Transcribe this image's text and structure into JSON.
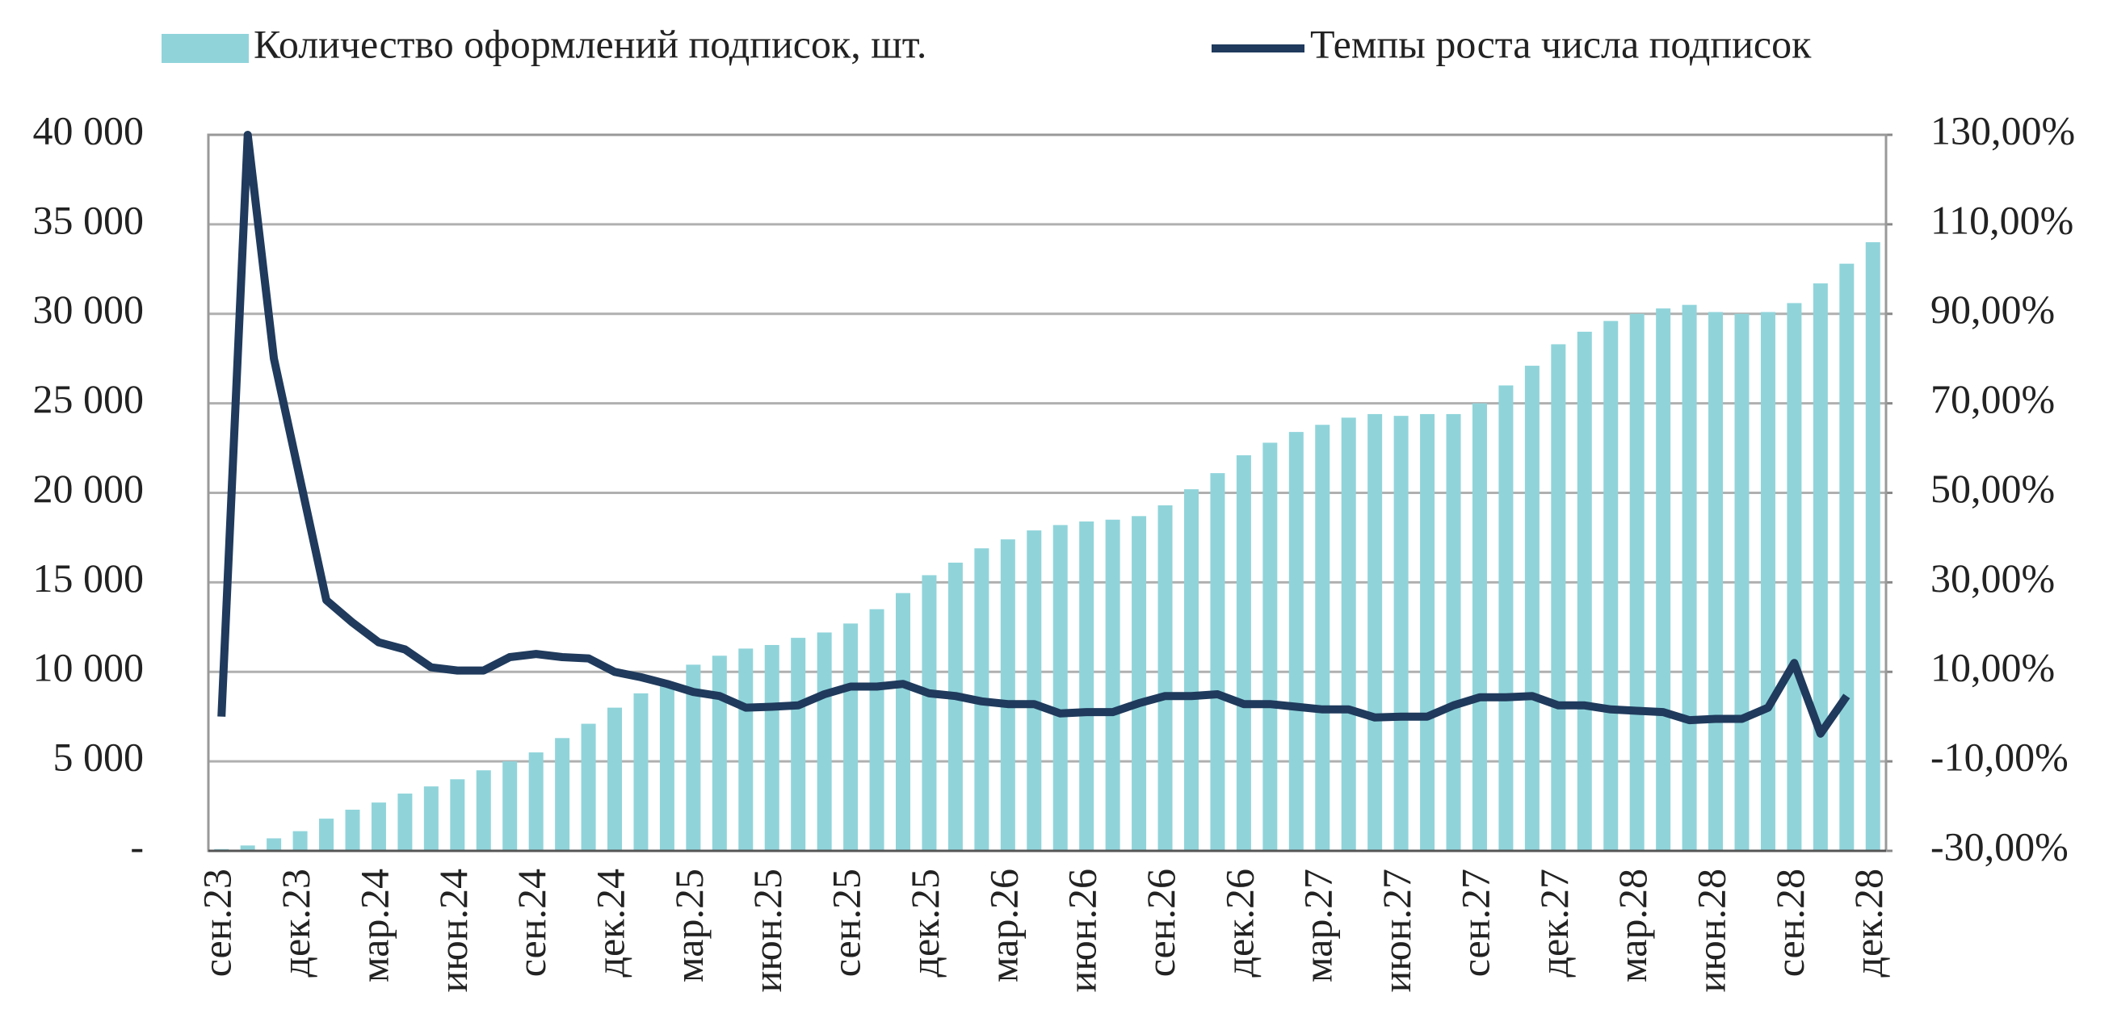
{
  "chart_data": {
    "type": "bar-line",
    "categories": [
      "сен.23",
      null,
      null,
      "дек.23",
      null,
      null,
      "мар.24",
      null,
      null,
      "июн.24",
      null,
      null,
      "сен.24",
      null,
      null,
      "дек.24",
      null,
      null,
      "мар.25",
      null,
      null,
      "июн.25",
      null,
      null,
      "сен.25",
      null,
      null,
      "дек.25",
      null,
      null,
      "мар.26",
      null,
      null,
      "июн.26",
      null,
      null,
      "сен.26",
      null,
      null,
      "дек.26",
      null,
      null,
      "мар.27",
      null,
      null,
      "июн.27",
      null,
      null,
      "сен.27",
      null,
      null,
      "дек.27",
      null,
      null,
      "мар.28",
      null,
      null,
      "июн.28",
      null,
      null,
      "сен.28",
      null,
      null,
      "дек.28"
    ],
    "series": [
      {
        "name": "Количество оформлений подписок, шт.",
        "type": "bar",
        "color": "#90d4da",
        "values": [
          100,
          300,
          700,
          1100,
          1800,
          2300,
          2700,
          3200,
          3600,
          4000,
          4500,
          5000,
          5500,
          6300,
          7100,
          8000,
          8800,
          9300,
          10400,
          10900,
          11300,
          11500,
          11900,
          12200,
          12700,
          13500,
          14400,
          15400,
          16100,
          16900,
          17400,
          17900,
          18200,
          18400,
          18500,
          18700,
          19300,
          20200,
          21100,
          22100,
          22800,
          23400,
          23800,
          24200,
          24400,
          24300,
          24400,
          24400,
          25000,
          26000,
          27100,
          28300,
          29000,
          29600,
          30000,
          30300,
          30500,
          30100,
          30000,
          30100,
          30600,
          31700,
          32800,
          34000
        ]
      },
      {
        "name": "Темпы роста числа подписок",
        "type": "line",
        "axis": "y2",
        "color": "#1f3a5c",
        "values": [
          0,
          130,
          80,
          53,
          26,
          21,
          16.6,
          15,
          11,
          10.3,
          10.3,
          13.3,
          14,
          13.3,
          13,
          10,
          8.8,
          7.3,
          5.5,
          4.6,
          2,
          2.2,
          2.5,
          5,
          6.7,
          6.7,
          7.3,
          5.2,
          4.6,
          3.4,
          2.8,
          2.8,
          0.7,
          1,
          1,
          3,
          4.6,
          4.6,
          5,
          2.8,
          2.8,
          2.2,
          1.6,
          1.6,
          -0.2,
          0,
          0,
          2.5,
          4.3,
          4.3,
          4.6,
          2.5,
          2.5,
          1.6,
          1.3,
          1,
          -0.8,
          -0.5,
          -0.5,
          2,
          12,
          -3.8,
          4.6,
          null
        ]
      }
    ],
    "ylim": [
      0,
      40000
    ],
    "yticks": [
      {
        "value": 0,
        "label": "-"
      },
      {
        "value": 5000,
        "label": "5 000"
      },
      {
        "value": 10000,
        "label": "10 000"
      },
      {
        "value": 15000,
        "label": "15 000"
      },
      {
        "value": 20000,
        "label": "20 000"
      },
      {
        "value": 25000,
        "label": "25 000"
      },
      {
        "value": 30000,
        "label": "30 000"
      },
      {
        "value": 35000,
        "label": "35 000"
      },
      {
        "value": 40000,
        "label": "40 000"
      }
    ],
    "y2lim": [
      -30,
      130
    ],
    "y2ticks": [
      {
        "value": -30,
        "label": "-30,00%"
      },
      {
        "value": -10,
        "label": "-10,00%"
      },
      {
        "value": 10,
        "label": "10,00%"
      },
      {
        "value": 30,
        "label": "30,00%"
      },
      {
        "value": 50,
        "label": "50,00%"
      },
      {
        "value": 70,
        "label": "70,00%"
      },
      {
        "value": 90,
        "label": "90,00%"
      },
      {
        "value": 110,
        "label": "110,00%"
      },
      {
        "value": 130,
        "label": "130,00%"
      }
    ],
    "grid": true,
    "legend": "top"
  }
}
